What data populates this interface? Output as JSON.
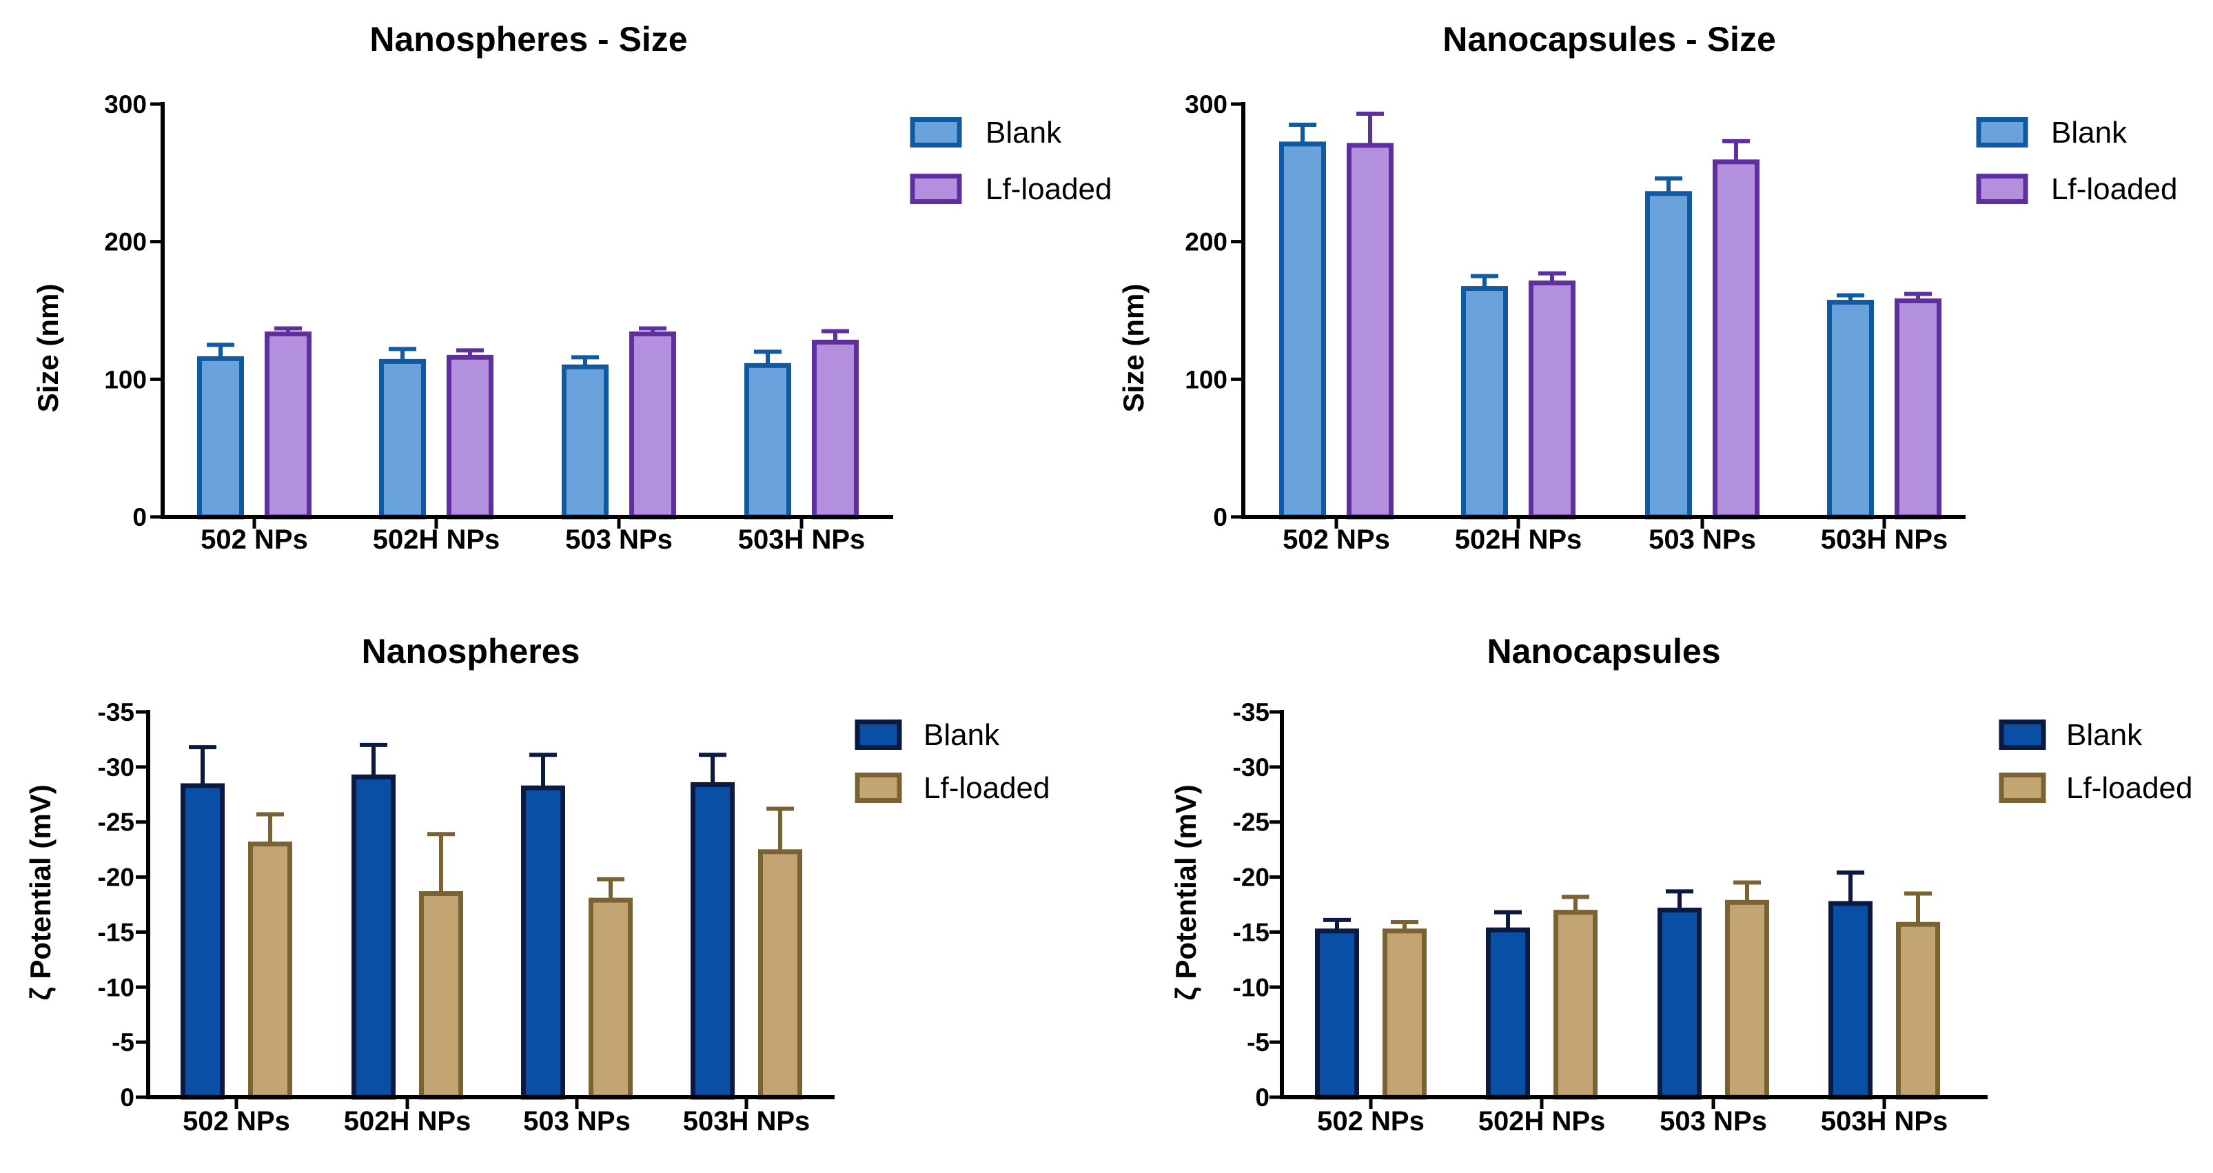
{
  "chart_data": [
    {
      "id": "ns-size",
      "type": "bar",
      "title": "Nanospheres - Size",
      "xlabel": "",
      "ylabel": "Size (nm)",
      "categories": [
        "502 NPs",
        "502H NPs",
        "503 NPs",
        "503H NPs"
      ],
      "ylim": [
        0,
        300
      ],
      "yticks": [
        0,
        100,
        200,
        300
      ],
      "ytick_labels": [
        "0",
        "100",
        "200",
        "300"
      ],
      "legend_position": "top-right",
      "series": [
        {
          "name": "Blank",
          "fill": "#6aa3db",
          "stroke": "#0f5aa3",
          "values": [
            115,
            113,
            109,
            110
          ],
          "errors": [
            10,
            9,
            7,
            10
          ]
        },
        {
          "name": "Lf-loaded",
          "fill": "#b290de",
          "stroke": "#5f2fa0",
          "values": [
            133,
            116,
            133,
            127
          ],
          "errors": [
            4,
            5,
            4,
            8
          ]
        }
      ]
    },
    {
      "id": "nc-size",
      "type": "bar",
      "title": "Nanocapsules - Size",
      "xlabel": "",
      "ylabel": "Size (nm)",
      "categories": [
        "502 NPs",
        "502H NPs",
        "503 NPs",
        "503H NPs"
      ],
      "ylim": [
        0,
        300
      ],
      "yticks": [
        0,
        100,
        200,
        300
      ],
      "ytick_labels": [
        "0",
        "100",
        "200",
        "300"
      ],
      "legend_position": "top-right",
      "series": [
        {
          "name": "Blank",
          "fill": "#6aa3db",
          "stroke": "#0f5aa3",
          "values": [
            271,
            166,
            235,
            156
          ],
          "errors": [
            14,
            9,
            11,
            5
          ]
        },
        {
          "name": "Lf-loaded",
          "fill": "#b290de",
          "stroke": "#5f2fa0",
          "values": [
            270,
            170,
            258,
            157
          ],
          "errors": [
            23,
            7,
            15,
            5
          ]
        }
      ]
    },
    {
      "id": "ns-zeta",
      "type": "bar",
      "title": "Nanospheres",
      "xlabel": "",
      "ylabel": "ζ Potential (mV)",
      "categories": [
        "502 NPs",
        "502H NPs",
        "503 NPs",
        "503H NPs"
      ],
      "ylim": [
        0,
        -35
      ],
      "yticks": [
        0,
        -5,
        -10,
        -15,
        -20,
        -25,
        -30,
        -35
      ],
      "ytick_labels": [
        "0",
        "-5",
        "-10",
        "-15",
        "-20",
        "-25",
        "-30",
        "-35"
      ],
      "legend_position": "top-right",
      "series": [
        {
          "name": "Blank",
          "fill": "#0a4fa6",
          "stroke": "#0b1a40",
          "values": [
            -28.3,
            -29.1,
            -28.1,
            -28.4
          ],
          "errors": [
            3.5,
            2.9,
            3.0,
            2.7
          ]
        },
        {
          "name": "Lf-loaded",
          "fill": "#c3a574",
          "stroke": "#7b6233",
          "values": [
            -23.0,
            -18.5,
            -17.9,
            -22.3
          ],
          "errors": [
            2.7,
            5.4,
            1.9,
            3.9
          ]
        }
      ]
    },
    {
      "id": "nc-zeta",
      "type": "bar",
      "title": "Nanocapsules",
      "xlabel": "",
      "ylabel": "ζ Potential (mV)",
      "categories": [
        "502 NPs",
        "502H NPs",
        "503 NPs",
        "503H NPs"
      ],
      "ylim": [
        0,
        -35
      ],
      "yticks": [
        0,
        -5,
        -10,
        -15,
        -20,
        -25,
        -30,
        -35
      ],
      "ytick_labels": [
        "0",
        "-5",
        "-10",
        "-15",
        "-20",
        "-25",
        "-30",
        "-35"
      ],
      "legend_position": "top-right",
      "series": [
        {
          "name": "Blank",
          "fill": "#0a4fa6",
          "stroke": "#0b1a40",
          "values": [
            -15.1,
            -15.2,
            -17.0,
            -17.6
          ],
          "errors": [
            1.0,
            1.6,
            1.7,
            2.8
          ]
        },
        {
          "name": "Lf-loaded",
          "fill": "#c3a574",
          "stroke": "#7b6233",
          "values": [
            -15.1,
            -16.8,
            -17.7,
            -15.7
          ],
          "errors": [
            0.8,
            1.4,
            1.8,
            2.8
          ]
        }
      ]
    }
  ]
}
